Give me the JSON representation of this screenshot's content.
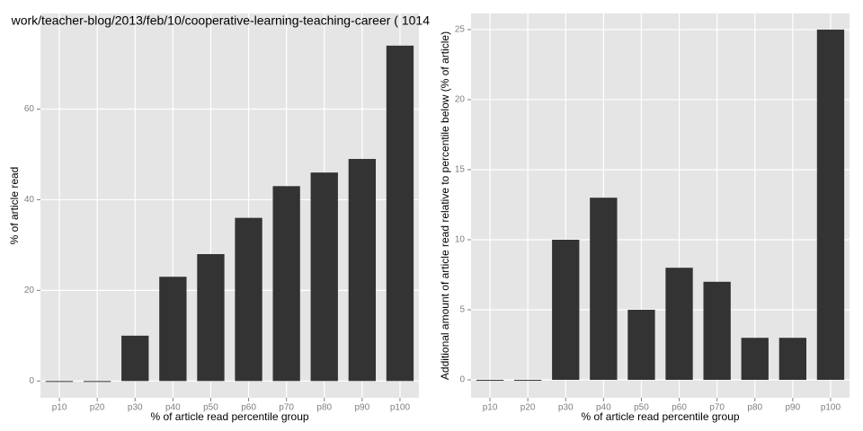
{
  "chart_data": [
    {
      "type": "bar",
      "title": "work/teacher-blog/2013/feb/10/cooperative-learning-teaching-career ( 1014",
      "x_label": "% of article read percentile group",
      "y_label": "% of article read",
      "categories": [
        "p10",
        "p20",
        "p30",
        "p40",
        "p50",
        "p60",
        "p70",
        "p80",
        "p90",
        "p100"
      ],
      "values": [
        0,
        0,
        10,
        23,
        28,
        36,
        43,
        46,
        49,
        74
      ],
      "color": "#333333",
      "ylim": [
        -3.7,
        81.1
      ],
      "yticks": [
        0,
        20,
        40,
        60
      ],
      "grid": true
    },
    {
      "type": "bar",
      "x_label": "% of article read percentile group",
      "y_label": "Additional amount of article read relative to percentile below (% of article)",
      "categories": [
        "p10",
        "p20",
        "p30",
        "p40",
        "p50",
        "p60",
        "p70",
        "p80",
        "p90",
        "p100"
      ],
      "values": [
        0,
        0,
        10,
        13,
        5,
        8,
        7,
        3,
        3,
        25
      ],
      "color": "#333333",
      "ylim": [
        -1.28,
        26.15
      ],
      "yticks": [
        0,
        5,
        10,
        15,
        20,
        25
      ],
      "grid": true
    }
  ]
}
